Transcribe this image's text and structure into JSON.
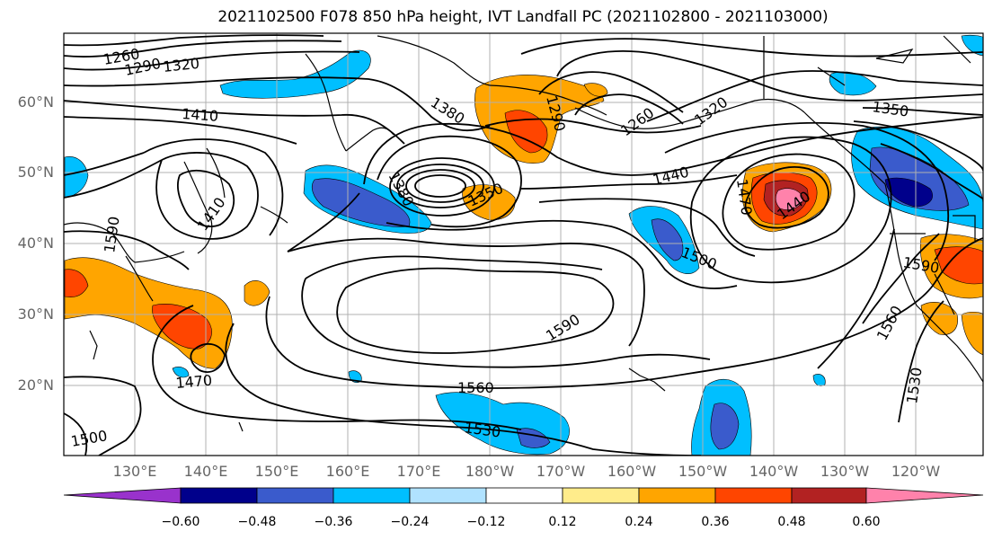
{
  "title": "2021102500 F078 850 hPa height, IVT Landfall PC (2021102800 - 2021103000)",
  "map": {
    "lat_labels": [
      "60°N",
      "50°N",
      "40°N",
      "30°N",
      "20°N"
    ],
    "lon_labels": [
      "130°E",
      "140°E",
      "150°E",
      "160°E",
      "170°E",
      "180°W",
      "170°W",
      "160°W",
      "150°W",
      "140°W",
      "130°W",
      "120°W"
    ],
    "contour_labels": [
      "1260",
      "1290",
      "1320",
      "1410",
      "1380",
      "1350",
      "1440",
      "1320",
      "1350",
      "1470",
      "1440",
      "1500",
      "1590",
      "1560",
      "1590",
      "1560",
      "1530",
      "1470",
      "1500",
      "1530",
      "1590",
      "1380",
      "1410",
      "1260",
      "1290"
    ]
  },
  "colorbar": {
    "tick_labels": [
      "−0.60",
      "−0.48",
      "−0.36",
      "−0.24",
      "−0.12",
      "0.12",
      "0.24",
      "0.36",
      "0.48",
      "0.60"
    ],
    "colors": [
      "#9932cc",
      "#00008b",
      "#3a5bcc",
      "#00bfff",
      "#b0e2ff",
      "#ffffff",
      "#ffec8b",
      "#ffa500",
      "#ff4500",
      "#b22222",
      "#ff82ab"
    ]
  }
}
